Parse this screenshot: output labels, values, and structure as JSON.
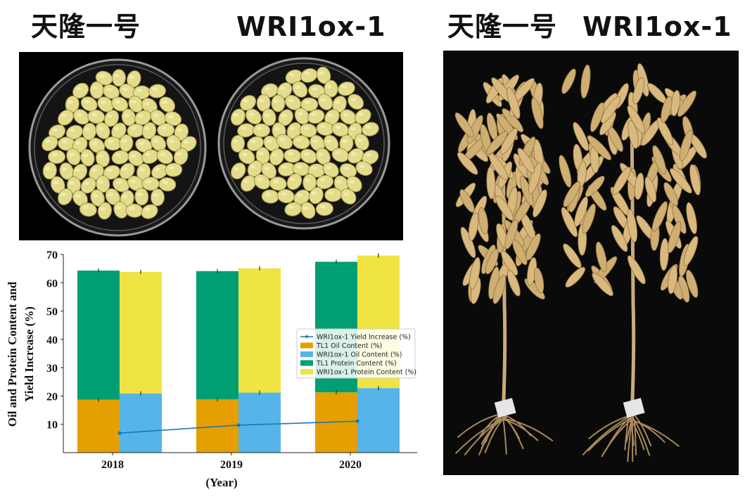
{
  "headings": {
    "left_a": "天隆一号",
    "left_b": "WRI1ox-1",
    "right_a": "天隆一号",
    "right_b": "WRI1ox-1"
  },
  "photos": {
    "seed_icon": "seed-dish-image",
    "plant_icon": "soybean-plant-image"
  },
  "colors": {
    "tl1_oil": "#E69F00",
    "wri_oil": "#56B4E9",
    "tl1_protein": "#009E73",
    "wri_protein": "#F0E442",
    "yield_line": "#1f77b4"
  },
  "chart_data": {
    "type": "bar",
    "stacked": true,
    "categories": [
      "2018",
      "2019",
      "2020"
    ],
    "xlabel": "(Year)",
    "ylabel": "Oil and Protein Content and Yield Increase (%)",
    "ylabel_lines": [
      "Oil and Protein Content and",
      "Yield Increase (%)"
    ],
    "ylim": [
      0,
      70
    ],
    "yticks": [
      10,
      20,
      30,
      40,
      50,
      60,
      70
    ],
    "grid": false,
    "legend_position": "right",
    "series": [
      {
        "name": "TL1 Oil Content (%)",
        "group": "TL1",
        "layer": "oil",
        "values": [
          18.7,
          18.8,
          21.3
        ]
      },
      {
        "name": "TL1 Protein Content (%)",
        "group": "TL1",
        "layer": "protein",
        "values": [
          45.6,
          45.3,
          46.1
        ]
      },
      {
        "name": "WRI1ox-1 Oil Content (%)",
        "group": "WRI1ox-1",
        "layer": "oil",
        "values": [
          20.9,
          21.2,
          22.8
        ]
      },
      {
        "name": "WRI1ox-1 Protein Content (%)",
        "group": "WRI1ox-1",
        "layer": "protein",
        "values": [
          42.9,
          43.9,
          46.8
        ]
      }
    ],
    "line": {
      "name": "WRI1ox-1 Yield Increase (%)",
      "values": [
        6.9,
        9.7,
        11.1
      ]
    },
    "legend": [
      "WRI1ox-1 Yield Increase (%)",
      "TL1 Oil Content (%)",
      "WRI1ox-1 Oil Content (%)",
      "TL1 Protein Content (%)",
      "WRI1ox-1 Protein Content (%)"
    ]
  }
}
